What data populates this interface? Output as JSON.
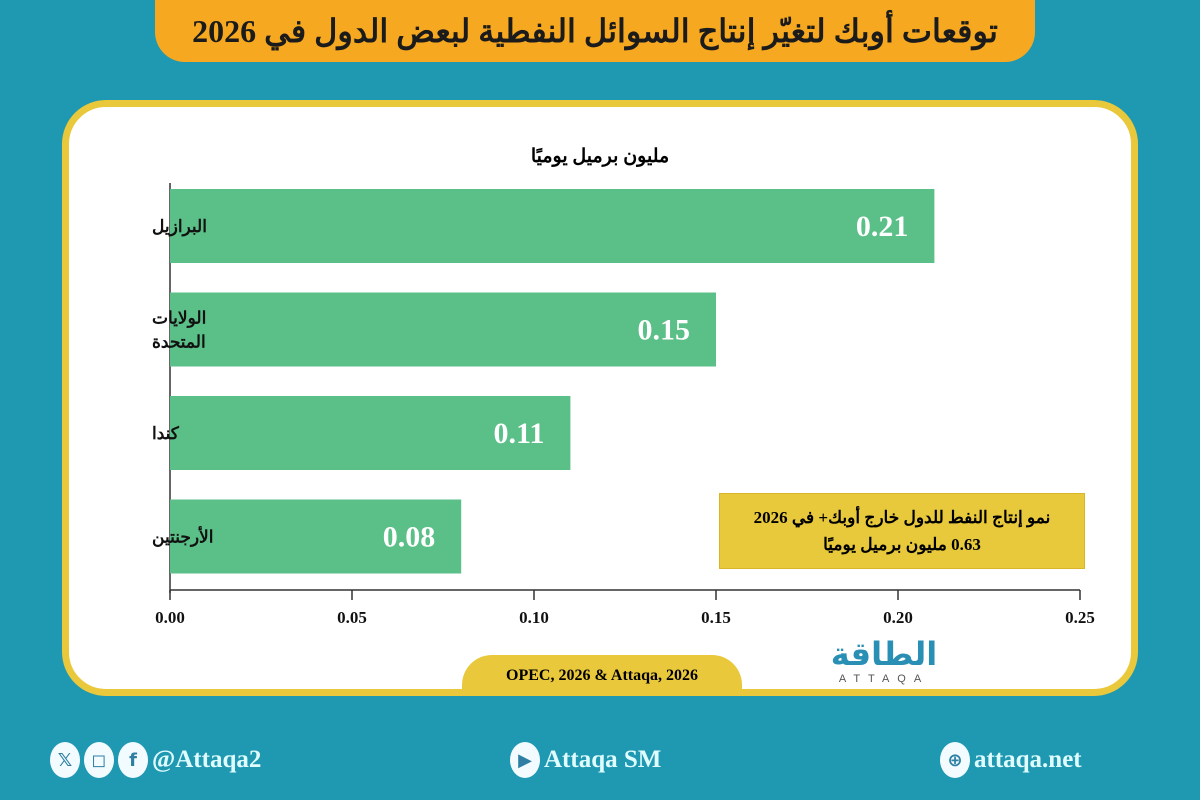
{
  "title": "توقعات أوبك لتغيّر إنتاج السوائل النفطية لبعض الدول في 2026",
  "chart_data": {
    "type": "bar",
    "orientation": "horizontal",
    "title": "مليون برميل يوميًا",
    "categories": [
      "البرازيل",
      "الولايات المتحدة",
      "كندا",
      "الأرجنتين"
    ],
    "values": [
      0.21,
      0.15,
      0.11,
      0.08
    ],
    "data_labels": [
      "0.21",
      "0.15",
      "0.11",
      "0.08"
    ],
    "xlim": [
      0,
      0.25
    ],
    "xticks": [
      "0.00",
      "0.05",
      "0.10",
      "0.15",
      "0.20",
      "0.25"
    ],
    "grid": false,
    "bar_color": "#5bbf88"
  },
  "note": {
    "line1": "نمو إنتاج النفط للدول خارج أوبك+ في 2026",
    "line2": "0.63  مليون برميل يوميًا"
  },
  "source": "OPEC, 2026 & Attaqa, 2026",
  "logo": {
    "ar": "الطاقة",
    "en": "ATTAQA"
  },
  "footer": {
    "social": "@Attaqa2",
    "youtube": "Attaqa SM",
    "web": "attaqa.net"
  },
  "colors": {
    "background": "#1f98b1",
    "banner": "#f6a821",
    "border": "#e9c83b"
  }
}
